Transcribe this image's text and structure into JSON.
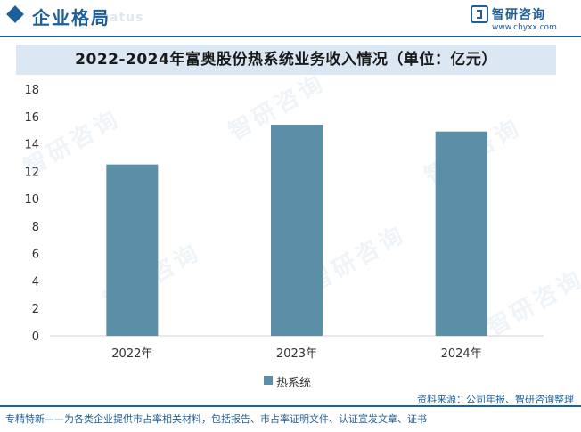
{
  "header": {
    "title": "企业格局",
    "title_bg": "status",
    "logo_name": "智研咨询",
    "logo_url": "www.chyxx.com"
  },
  "watermark_text": "智研咨询",
  "chart_data": {
    "type": "bar",
    "title": "2022-2024年富奥股份热系统业务收入情况（单位：亿元）",
    "categories": [
      "2022年",
      "2023年",
      "2024年"
    ],
    "series": [
      {
        "name": "热系统",
        "values": [
          12.5,
          15.4,
          14.9
        ]
      }
    ],
    "ylim": [
      0,
      18
    ],
    "yticks": [
      0,
      2,
      4,
      6,
      8,
      10,
      12,
      14,
      16,
      18
    ],
    "xlabel": "",
    "ylabel": "",
    "grid": false,
    "legend_position": "bottom",
    "bar_color": "#5b8fa8"
  },
  "source": "资料来源：公司年报、智研咨询整理",
  "footer": "专精特新——为各类企业提供市占率相关材料，包括报告、市占率证明文件、认证宣发文章、证书"
}
